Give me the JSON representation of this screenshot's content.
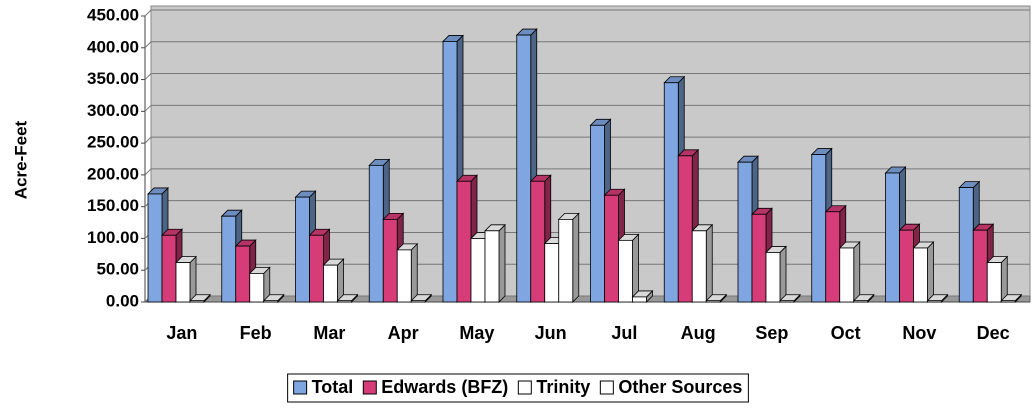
{
  "chart_data": {
    "type": "bar",
    "y_label": "Acre-Feet",
    "categories": [
      "Jan",
      "Feb",
      "Mar",
      "Apr",
      "May",
      "Jun",
      "Jul",
      "Aug",
      "Sep",
      "Oct",
      "Nov",
      "Dec"
    ],
    "series": [
      {
        "name": "Total",
        "color": "#7fa6e0",
        "values": [
          170,
          135,
          165,
          215,
          410,
          420,
          278,
          345,
          220,
          232,
          203,
          180
        ]
      },
      {
        "name": "Edwards (BFZ)",
        "color": "#d63c78",
        "values": [
          105,
          88,
          105,
          130,
          190,
          190,
          168,
          230,
          138,
          142,
          113,
          113
        ]
      },
      {
        "name": "Trinity",
        "color": "#ffffff",
        "values": [
          62,
          45,
          58,
          82,
          100,
          92,
          97,
          112,
          78,
          85,
          85,
          62
        ]
      },
      {
        "name": "Other Sources",
        "color": "#ffffff",
        "values": [
          2,
          2,
          2,
          2,
          112,
          130,
          8,
          2,
          2,
          2,
          2,
          2
        ]
      }
    ],
    "ylim": [
      0,
      450
    ],
    "yticks": [
      {
        "value": 0,
        "label": "0.00"
      },
      {
        "value": 50,
        "label": "50.00"
      },
      {
        "value": 100,
        "label": "100.00"
      },
      {
        "value": 150,
        "label": "150.00"
      },
      {
        "value": 200,
        "label": "200.00"
      },
      {
        "value": 250,
        "label": "250.00"
      },
      {
        "value": 300,
        "label": "300.00"
      },
      {
        "value": 350,
        "label": "350.00"
      },
      {
        "value": 400,
        "label": "400.00"
      },
      {
        "value": 450,
        "label": "450.00"
      }
    ],
    "grid": true,
    "legend": "bottom"
  }
}
